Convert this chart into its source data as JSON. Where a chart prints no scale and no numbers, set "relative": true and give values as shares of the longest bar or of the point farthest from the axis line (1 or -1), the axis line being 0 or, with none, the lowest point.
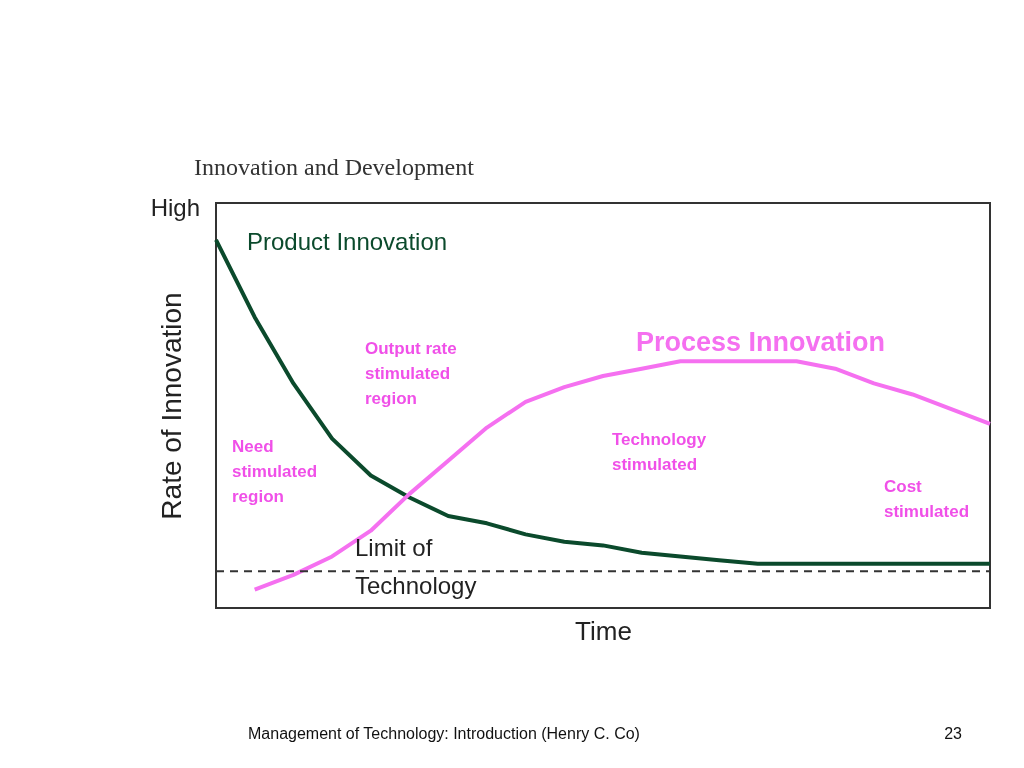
{
  "chart_data": {
    "type": "line",
    "title": "Innovation and Development",
    "xlabel": "Time",
    "ylabel": "Rate of Innovation",
    "relative": true,
    "categories": [
      null,
      null,
      null,
      null,
      null,
      null,
      null,
      null,
      null,
      null,
      null,
      null,
      null,
      null,
      null,
      null,
      null,
      null,
      null,
      null,
      null
    ],
    "series": [
      {
        "name": "Product Innovation",
        "color": "#0b4a2c",
        "values": [
          1.0,
          0.79,
          0.61,
          0.46,
          0.36,
          0.3,
          0.25,
          0.23,
          0.2,
          0.18,
          0.17,
          0.15,
          0.14,
          0.13,
          0.12,
          0.12,
          0.12,
          0.12,
          0.12,
          0.12,
          0.12
        ]
      },
      {
        "name": "Process Innovation",
        "color": "#f570f0",
        "values": [
          null,
          0.05,
          0.09,
          0.14,
          0.21,
          0.31,
          0.4,
          0.49,
          0.56,
          0.6,
          0.63,
          0.65,
          0.67,
          0.67,
          0.67,
          0.67,
          0.65,
          0.61,
          0.58,
          0.54,
          0.5
        ]
      }
    ],
    "ref_lines": [
      {
        "axis": "y",
        "value": 0.1,
        "label": "Limit of Technology",
        "color": "#333333",
        "line_style": "dashed"
      }
    ],
    "annotations": [
      "High",
      "Need stimulated region",
      "Output rate stimulated region",
      "Technology stimulated",
      "Cost stimulated",
      "Management of Technology: Introduction (Henry C. Co)",
      "23"
    ],
    "legend": false,
    "grid": false,
    "marker": "none",
    "line_style": "solid"
  }
}
